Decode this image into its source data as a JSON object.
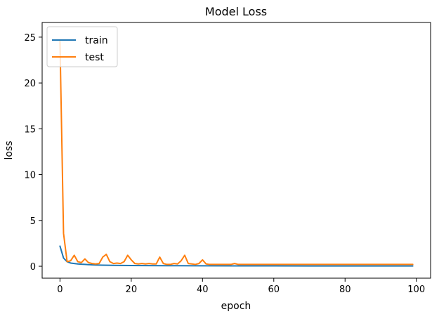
{
  "chart_data": {
    "type": "line",
    "title": "Model Loss",
    "xlabel": "epoch",
    "ylabel": "loss",
    "xlim": [
      -5,
      104
    ],
    "ylim": [
      -1.3,
      26.6
    ],
    "xticks": [
      0,
      20,
      40,
      60,
      80,
      100
    ],
    "yticks": [
      0,
      5,
      10,
      15,
      20,
      25
    ],
    "grid": false,
    "legend_position": "top-left",
    "series": [
      {
        "name": "train",
        "color": "#1f77b4",
        "x": [
          0,
          1,
          2,
          3,
          4,
          5,
          6,
          7,
          8,
          9,
          10,
          12,
          15,
          20,
          25,
          30,
          40,
          50,
          60,
          70,
          80,
          90,
          99
        ],
        "values": [
          2.2,
          0.9,
          0.5,
          0.35,
          0.3,
          0.25,
          0.22,
          0.2,
          0.18,
          0.16,
          0.14,
          0.12,
          0.1,
          0.08,
          0.07,
          0.06,
          0.05,
          0.04,
          0.04,
          0.03,
          0.03,
          0.03,
          0.03
        ]
      },
      {
        "name": "test",
        "color": "#ff7f0e",
        "x": [
          0,
          1,
          2,
          3,
          4,
          5,
          6,
          7,
          8,
          9,
          10,
          11,
          12,
          13,
          14,
          15,
          16,
          17,
          18,
          19,
          20,
          21,
          22,
          23,
          24,
          25,
          26,
          27,
          28,
          29,
          30,
          31,
          32,
          33,
          34,
          35,
          36,
          37,
          38,
          39,
          40,
          41,
          42,
          43,
          44,
          45,
          46,
          47,
          48,
          49,
          50,
          55,
          60,
          65,
          70,
          75,
          80,
          85,
          90,
          95,
          99
        ],
        "values": [
          24.6,
          3.6,
          0.5,
          0.6,
          1.2,
          0.5,
          0.4,
          0.8,
          0.4,
          0.3,
          0.25,
          0.3,
          1.0,
          1.3,
          0.5,
          0.3,
          0.35,
          0.3,
          0.5,
          1.2,
          0.7,
          0.3,
          0.25,
          0.3,
          0.25,
          0.3,
          0.25,
          0.25,
          1.0,
          0.3,
          0.2,
          0.2,
          0.3,
          0.25,
          0.6,
          1.2,
          0.3,
          0.25,
          0.2,
          0.3,
          0.7,
          0.25,
          0.2,
          0.2,
          0.2,
          0.2,
          0.2,
          0.2,
          0.2,
          0.3,
          0.2,
          0.2,
          0.2,
          0.2,
          0.2,
          0.2,
          0.2,
          0.2,
          0.2,
          0.2,
          0.2
        ]
      }
    ]
  }
}
